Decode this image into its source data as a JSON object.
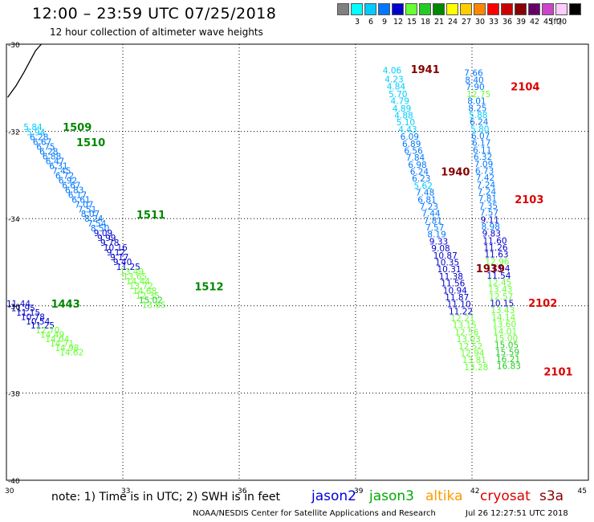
{
  "title": "12:00 – 23:59 UTC 07/25/2018",
  "subtitle": "12 hour collection of altimeter wave heights",
  "legend": {
    "unit": "(ft)",
    "bins": [
      {
        "color": "#808080",
        "label": ""
      },
      {
        "color": "#00ffff",
        "label": "3"
      },
      {
        "color": "#00ccff",
        "label": "6"
      },
      {
        "color": "#0077ff",
        "label": "9"
      },
      {
        "color": "#0000cc",
        "label": "12"
      },
      {
        "color": "#66ff33",
        "label": "15"
      },
      {
        "color": "#22cc22",
        "label": "18"
      },
      {
        "color": "#008800",
        "label": "21"
      },
      {
        "color": "#ffff00",
        "label": "24"
      },
      {
        "color": "#ffcc00",
        "label": "27"
      },
      {
        "color": "#ff8800",
        "label": "30"
      },
      {
        "color": "#ff0000",
        "label": "33"
      },
      {
        "color": "#cc0000",
        "label": "36"
      },
      {
        "color": "#880000",
        "label": "39"
      },
      {
        "color": "#660066",
        "label": "42"
      },
      {
        "color": "#cc44cc",
        "label": "45"
      },
      {
        "color": "#ffccff",
        "label": "70"
      },
      {
        "color": "#000000",
        "label": ""
      }
    ]
  },
  "map": {
    "lon_range": [
      30,
      45
    ],
    "lat_range": [
      -30,
      -40
    ],
    "x_ticks": [
      {
        "value": 30,
        "label": "30"
      },
      {
        "value": 33,
        "label": "33"
      },
      {
        "value": 36,
        "label": "36"
      },
      {
        "value": 39,
        "label": "39"
      },
      {
        "value": 42,
        "label": "42"
      },
      {
        "value": 45,
        "label": "45"
      }
    ],
    "y_ticks": [
      {
        "value": -30,
        "label": "-30"
      },
      {
        "value": -32,
        "label": "-32"
      },
      {
        "value": -34,
        "label": "-34"
      },
      {
        "value": -36,
        "label": "-36"
      },
      {
        "value": -38,
        "label": "-38"
      },
      {
        "value": -40,
        "label": "-40"
      }
    ],
    "coast": [
      [
        30.03,
        -31.22
      ],
      [
        30.25,
        -30.95
      ],
      [
        30.45,
        -30.65
      ],
      [
        30.6,
        -30.4
      ],
      [
        30.75,
        -30.15
      ],
      [
        30.9,
        -30.0
      ]
    ]
  },
  "tracks": [
    {
      "points": [
        [
          30.44,
          -31.9,
          5.84
        ],
        [
          30.52,
          -32.02,
          5.94
        ],
        [
          30.6,
          -32.13,
          6.28
        ],
        [
          30.68,
          -32.24,
          6.67
        ],
        [
          30.77,
          -32.35,
          6.75
        ],
        [
          30.85,
          -32.46,
          6.28
        ],
        [
          30.93,
          -32.57,
          6.88
        ],
        [
          31.01,
          -32.68,
          6.47
        ],
        [
          31.1,
          -32.79,
          6.31
        ],
        [
          31.18,
          -32.9,
          7.45
        ],
        [
          31.26,
          -33.01,
          6.72
        ],
        [
          31.34,
          -33.12,
          6.92
        ],
        [
          31.43,
          -33.23,
          6.67
        ],
        [
          31.51,
          -33.34,
          6.83
        ],
        [
          31.59,
          -33.45,
          6.17
        ],
        [
          31.68,
          -33.56,
          6.61
        ],
        [
          31.76,
          -33.67,
          7.07
        ],
        [
          31.84,
          -33.78,
          7.51
        ],
        [
          31.92,
          -33.89,
          8.07
        ],
        [
          32.01,
          -34.0,
          8.24
        ],
        [
          32.09,
          -34.11,
          7.54
        ],
        [
          32.17,
          -34.22,
          8.5
        ],
        [
          32.25,
          -34.33,
          9.09
        ],
        [
          32.34,
          -34.44,
          9.99
        ],
        [
          32.42,
          -34.55,
          9.78
        ],
        [
          32.5,
          -34.66,
          10.16
        ],
        [
          32.58,
          -34.77,
          9.12
        ],
        [
          32.67,
          -34.88,
          9.17
        ],
        [
          32.75,
          -34.99,
          9.4
        ],
        [
          32.83,
          -35.1,
          11.25
        ],
        [
          32.92,
          -35.21,
          13.49
        ],
        [
          33.0,
          -35.32,
          13.65
        ],
        [
          33.08,
          -35.43,
          14.44
        ],
        [
          33.16,
          -35.54,
          13.72
        ],
        [
          33.25,
          -35.65,
          14.68
        ],
        [
          33.33,
          -35.76,
          12.35
        ],
        [
          33.41,
          -35.87,
          15.02
        ],
        [
          33.49,
          -35.98,
          13.65
        ]
      ],
      "labels": [
        {
          "text": "1509",
          "lon": 31.45,
          "lat": -31.9,
          "color": "#008800"
        },
        {
          "text": "1510",
          "lon": 31.8,
          "lat": -32.25,
          "color": "#008800"
        },
        {
          "text": "1511",
          "lon": 33.35,
          "lat": -33.9,
          "color": "#008800"
        },
        {
          "text": "1512",
          "lon": 34.85,
          "lat": -35.55,
          "color": "#008800"
        }
      ]
    },
    {
      "points": [
        [
          30.0,
          -35.95,
          11.44
        ],
        [
          30.12,
          -36.05,
          11.95
        ],
        [
          30.25,
          -36.15,
          11.15
        ],
        [
          30.37,
          -36.25,
          10.78
        ],
        [
          30.5,
          -36.35,
          10.54
        ],
        [
          30.62,
          -36.45,
          11.25
        ],
        [
          30.75,
          -36.56,
          12.7
        ],
        [
          30.87,
          -36.66,
          14.49
        ],
        [
          31.0,
          -36.76,
          14.04
        ],
        [
          31.12,
          -36.86,
          14.71
        ],
        [
          31.25,
          -36.96,
          14.98
        ],
        [
          31.37,
          -37.06,
          14.62
        ]
      ],
      "labels": [
        {
          "text": "1443",
          "lon": 31.15,
          "lat": -35.95,
          "color": "#008800"
        }
      ]
    },
    {
      "points": [
        [
          39.7,
          -30.6,
          4.06
        ],
        [
          39.75,
          -30.8,
          4.23
        ],
        [
          39.8,
          -30.97,
          4.84
        ],
        [
          39.85,
          -31.14,
          5.7
        ],
        [
          39.9,
          -31.3,
          4.79
        ],
        [
          39.95,
          -31.47,
          4.89
        ],
        [
          40.0,
          -31.63,
          4.88
        ],
        [
          40.05,
          -31.79,
          5.1
        ],
        [
          40.1,
          -31.95,
          4.43
        ],
        [
          40.15,
          -32.12,
          6.09
        ],
        [
          40.2,
          -32.28,
          6.89
        ],
        [
          40.25,
          -32.44,
          6.56
        ],
        [
          40.3,
          -32.6,
          7.84
        ],
        [
          40.35,
          -32.76,
          6.98
        ],
        [
          40.4,
          -32.92,
          6.24
        ],
        [
          40.45,
          -33.08,
          6.23
        ],
        [
          40.5,
          -33.24,
          5.62
        ],
        [
          40.55,
          -33.4,
          7.48
        ],
        [
          40.6,
          -33.56,
          6.81
        ],
        [
          40.65,
          -33.72,
          7.23
        ],
        [
          40.7,
          -33.88,
          7.44
        ],
        [
          40.75,
          -34.04,
          7.81
        ],
        [
          40.8,
          -34.2,
          7.57
        ],
        [
          40.85,
          -34.36,
          8.19
        ],
        [
          40.9,
          -34.52,
          9.33
        ],
        [
          40.95,
          -34.68,
          9.08
        ],
        [
          41.0,
          -34.84,
          10.87
        ],
        [
          41.05,
          -35.0,
          10.35
        ],
        [
          41.1,
          -35.16,
          10.31
        ],
        [
          41.15,
          -35.32,
          11.38
        ],
        [
          41.2,
          -35.48,
          11.56
        ],
        [
          41.25,
          -35.64,
          10.94
        ],
        [
          41.3,
          -35.8,
          11.87
        ],
        [
          41.35,
          -35.96,
          11.1
        ],
        [
          41.4,
          -36.12,
          11.22
        ],
        [
          41.45,
          -36.28,
          12.21
        ],
        [
          41.5,
          -36.44,
          13.15
        ],
        [
          41.55,
          -36.6,
          12.56
        ],
        [
          41.6,
          -36.76,
          13.03
        ],
        [
          41.65,
          -36.92,
          12.52
        ],
        [
          41.7,
          -37.08,
          12.94
        ],
        [
          41.75,
          -37.24,
          13.81
        ],
        [
          41.8,
          -37.4,
          13.28
        ]
      ],
      "labels": [
        {
          "text": "1941",
          "lon": 40.42,
          "lat": -30.57,
          "color": "#880000"
        },
        {
          "text": "1940",
          "lon": 41.2,
          "lat": -32.92,
          "color": "#880000"
        },
        {
          "text": "1939",
          "lon": 42.1,
          "lat": -35.14,
          "color": "#880000"
        }
      ]
    },
    {
      "points": [
        [
          41.8,
          -30.65,
          7.66
        ],
        [
          41.82,
          -30.82,
          8.4
        ],
        [
          41.84,
          -30.98,
          7.9
        ],
        [
          41.86,
          -31.14,
          12.75
        ],
        [
          41.88,
          -31.3,
          8.01
        ],
        [
          41.9,
          -31.46,
          8.25
        ],
        [
          41.92,
          -31.62,
          5.88
        ],
        [
          41.94,
          -31.78,
          6.24
        ],
        [
          41.96,
          -31.94,
          5.8
        ],
        [
          41.98,
          -32.1,
          6.07
        ],
        [
          42.0,
          -32.26,
          6.17
        ],
        [
          42.02,
          -32.42,
          6.11
        ],
        [
          42.04,
          -32.58,
          6.32
        ],
        [
          42.06,
          -32.74,
          7.09
        ],
        [
          42.08,
          -32.9,
          6.73
        ],
        [
          42.1,
          -33.06,
          7.42
        ],
        [
          42.12,
          -33.22,
          7.24
        ],
        [
          42.14,
          -33.38,
          7.24
        ],
        [
          42.16,
          -33.54,
          7.81
        ],
        [
          42.18,
          -33.7,
          7.35
        ],
        [
          42.2,
          -33.86,
          7.57
        ],
        [
          42.22,
          -34.02,
          9.11
        ],
        [
          42.24,
          -34.18,
          8.98
        ],
        [
          42.26,
          -34.34,
          9.83
        ],
        [
          42.28,
          -34.5,
          11.6
        ],
        [
          42.3,
          -34.66,
          11.26
        ],
        [
          42.32,
          -34.82,
          11.63
        ],
        [
          42.34,
          -34.98,
          12.96
        ],
        [
          42.36,
          -35.14,
          11.04
        ],
        [
          42.38,
          -35.3,
          11.54
        ],
        [
          42.4,
          -35.46,
          12.45
        ],
        [
          42.42,
          -35.62,
          13.43
        ],
        [
          42.44,
          -35.78,
          12.57
        ],
        [
          42.46,
          -35.94,
          10.15
        ],
        [
          42.48,
          -36.1,
          13.43
        ],
        [
          42.5,
          -36.26,
          14.14
        ],
        [
          42.52,
          -36.42,
          13.6
        ],
        [
          42.54,
          -36.58,
          14.01
        ],
        [
          42.56,
          -36.74,
          15.0
        ],
        [
          42.58,
          -36.9,
          15.05
        ],
        [
          42.6,
          -37.06,
          15.59
        ],
        [
          42.62,
          -37.22,
          16.21
        ],
        [
          42.64,
          -37.38,
          16.83
        ]
      ],
      "labels": [
        {
          "text": "2104",
          "lon": 43.0,
          "lat": -30.97,
          "color": "#dd0000"
        },
        {
          "text": "2103",
          "lon": 43.1,
          "lat": -33.55,
          "color": "#dd0000"
        },
        {
          "text": "2102",
          "lon": 43.45,
          "lat": -35.93,
          "color": "#dd0000"
        },
        {
          "text": "2101",
          "lon": 43.85,
          "lat": -37.5,
          "color": "#dd0000"
        }
      ]
    }
  ],
  "satellites": [
    {
      "name": "jason2",
      "color": "#0000dd"
    },
    {
      "name": "jason3",
      "color": "#00aa00"
    },
    {
      "name": "altika",
      "color": "#ff9900"
    },
    {
      "name": "cryosat",
      "color": "#dd0000"
    },
    {
      "name": "s3a",
      "color": "#880000"
    }
  ],
  "note": "note:  1) Time is in UTC;  2) SWH is in feet",
  "credit": "NOAA/NESDIS Center for Satellite Applications and Research",
  "timestamp": "Jul 26 12:27:51 UTC 2018"
}
